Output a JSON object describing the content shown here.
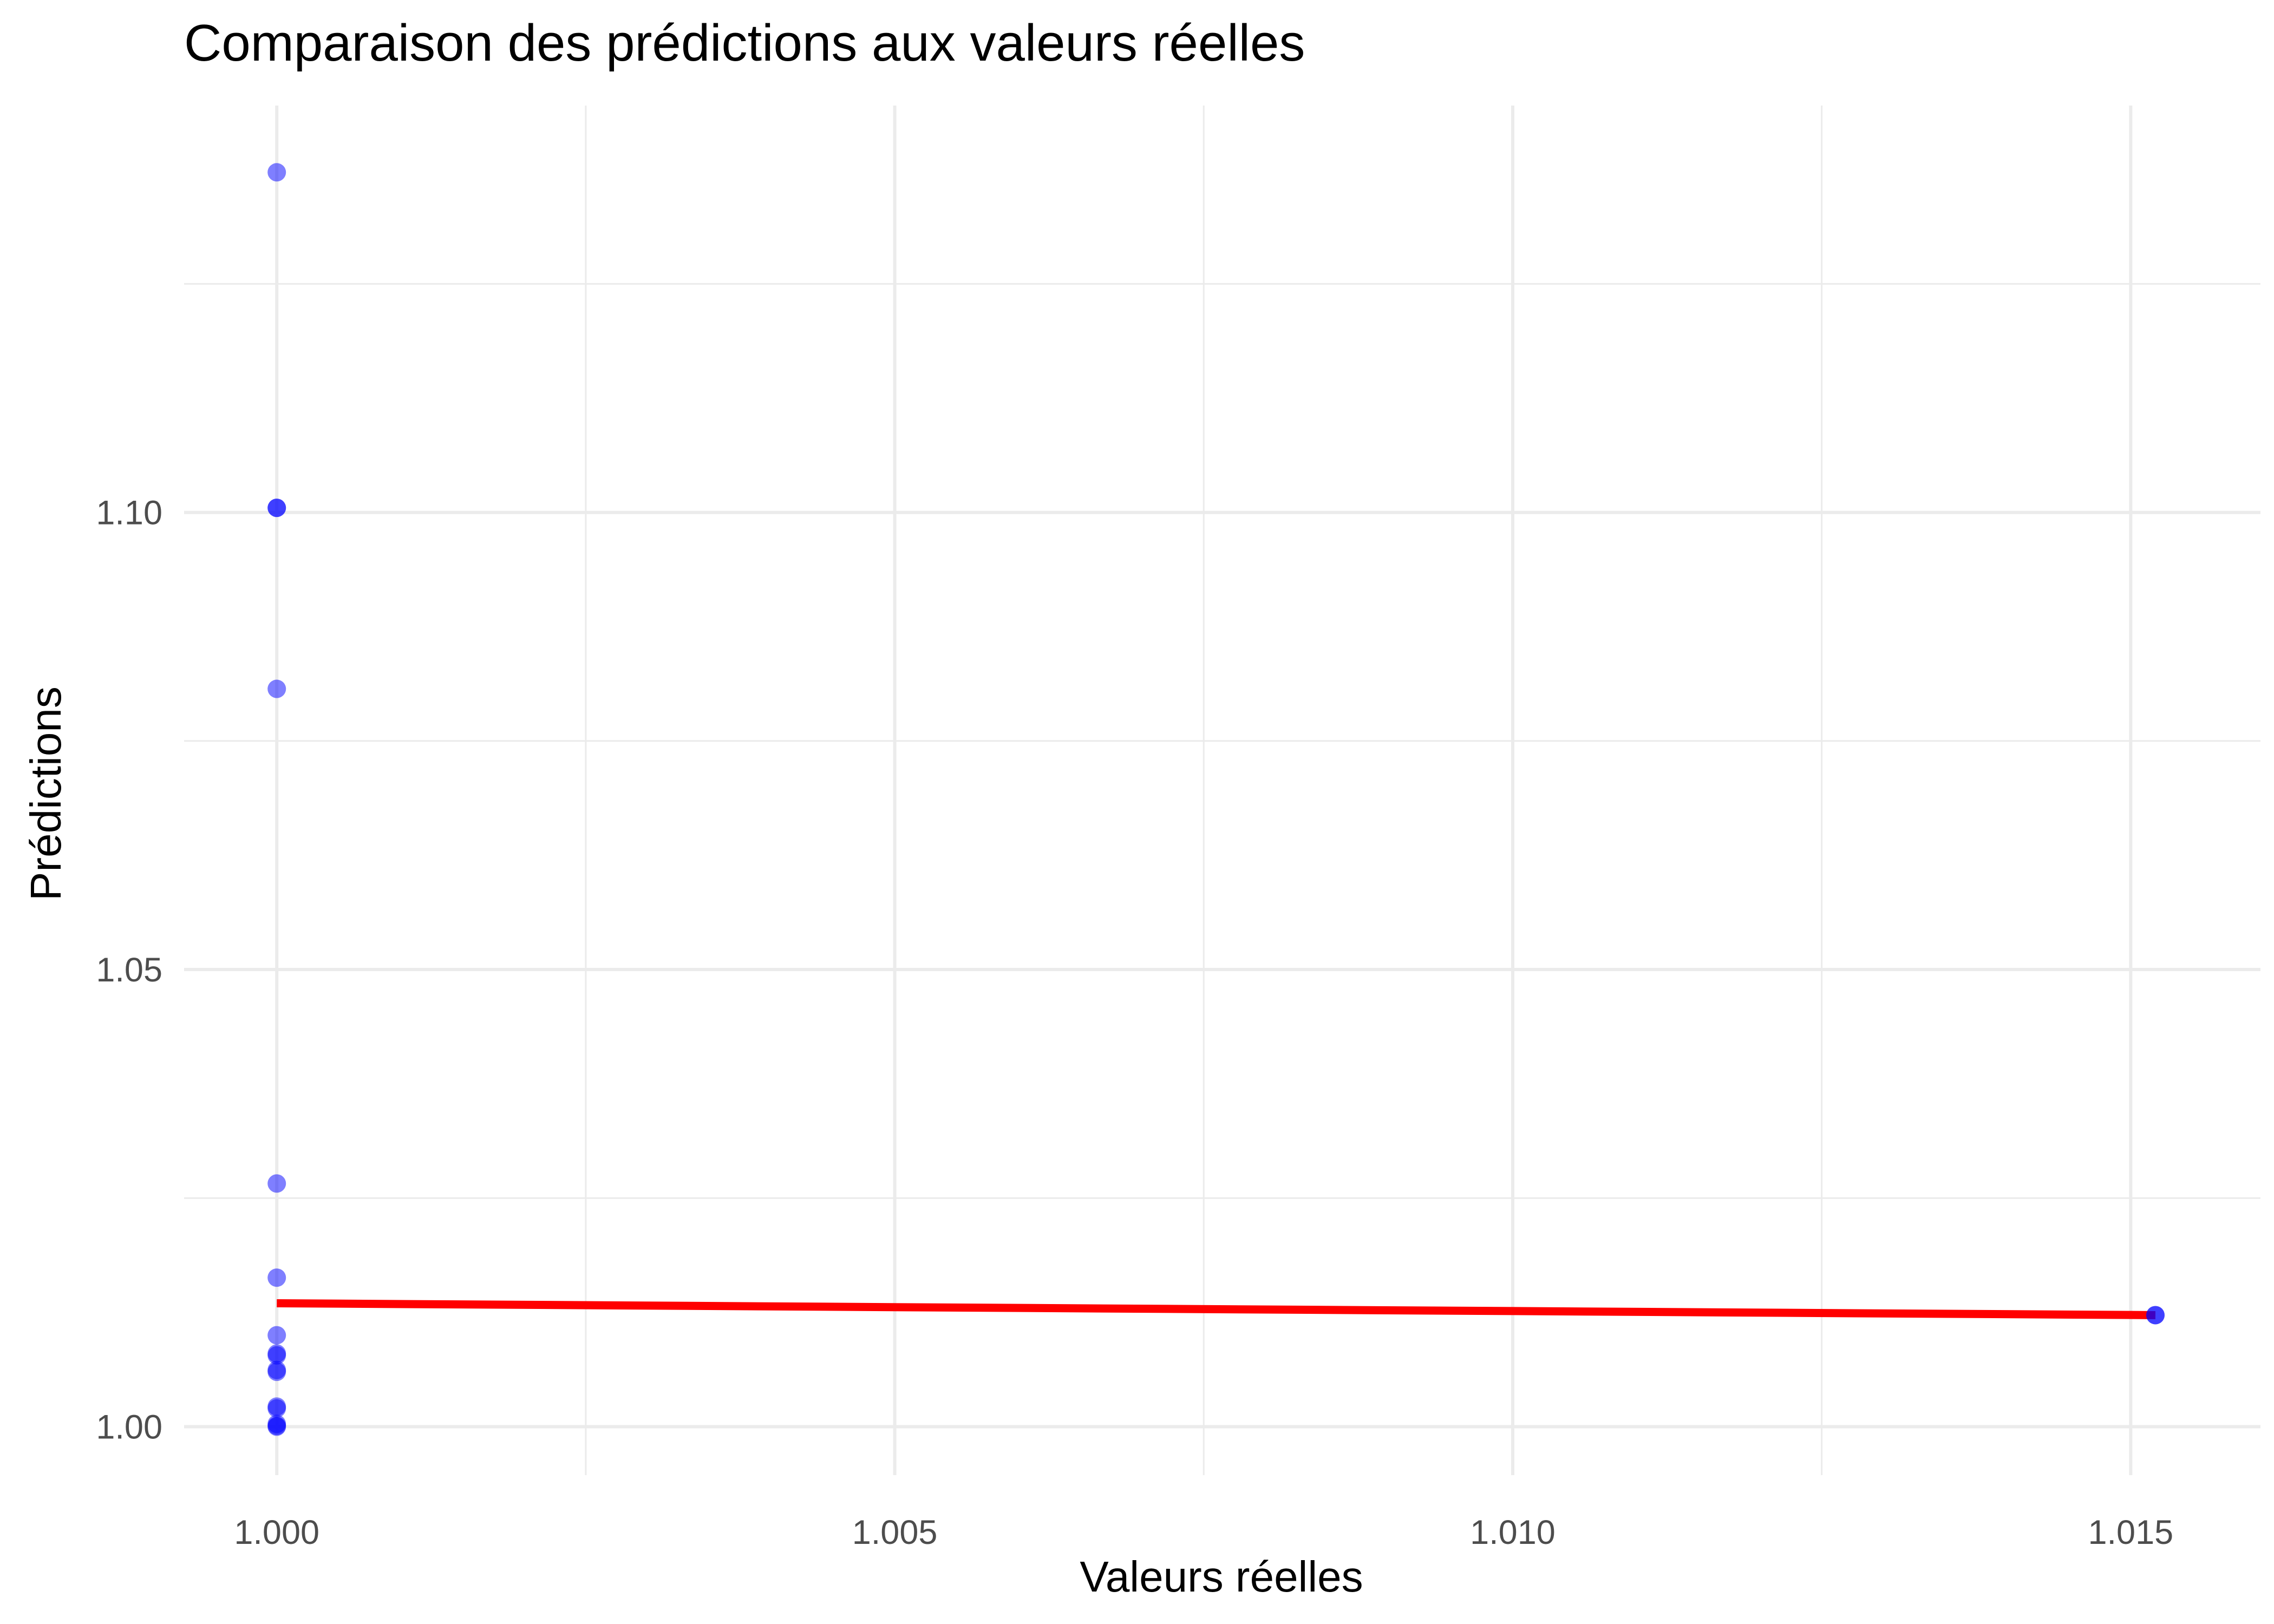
{
  "chart_data": {
    "type": "scatter",
    "title": "Comparaison des prédictions aux valeurs réelles",
    "xlabel": "Valeurs réelles",
    "ylabel": "Prédictions",
    "xlim": [
      0.99925,
      1.01605
    ],
    "ylim": [
      0.9947,
      1.1445
    ],
    "x_ticks": [
      {
        "value": 1.0,
        "label": "1.000"
      },
      {
        "value": 1.005,
        "label": "1.005"
      },
      {
        "value": 1.01,
        "label": "1.010"
      },
      {
        "value": 1.015,
        "label": "1.015"
      }
    ],
    "x_minor": [
      1.0025,
      1.0075,
      1.0125
    ],
    "y_ticks": [
      {
        "value": 1.0,
        "label": "1.00"
      },
      {
        "value": 1.05,
        "label": "1.05"
      },
      {
        "value": 1.1,
        "label": "1.10"
      }
    ],
    "y_minor": [
      1.025,
      1.075,
      1.125
    ],
    "grid": true,
    "point_color": "#0000ff",
    "point_opacity": 0.5,
    "points": [
      {
        "x": 1.0,
        "y": 1.1372
      },
      {
        "x": 1.0,
        "y": 1.1005
      },
      {
        "x": 1.0,
        "y": 1.1005
      },
      {
        "x": 1.0,
        "y": 1.0807
      },
      {
        "x": 1.0,
        "y": 1.0266
      },
      {
        "x": 1.0,
        "y": 1.0163
      },
      {
        "x": 1.0,
        "y": 1.01
      },
      {
        "x": 1.0,
        "y": 1.008
      },
      {
        "x": 1.0,
        "y": 1.0078
      },
      {
        "x": 1.0,
        "y": 1.0062
      },
      {
        "x": 1.0,
        "y": 1.006
      },
      {
        "x": 1.0,
        "y": 1.0022
      },
      {
        "x": 1.0,
        "y": 1.002
      },
      {
        "x": 1.0,
        "y": 1.0003
      },
      {
        "x": 1.0,
        "y": 1.0001
      },
      {
        "x": 1.0,
        "y": 1.0
      },
      {
        "x": 1.0152,
        "y": 1.0122
      },
      {
        "x": 1.0152,
        "y": 1.0122
      }
    ],
    "trend_line": {
      "color": "#ff0000",
      "x": [
        1.0,
        1.0152
      ],
      "y": [
        1.0135,
        1.0122
      ]
    }
  }
}
